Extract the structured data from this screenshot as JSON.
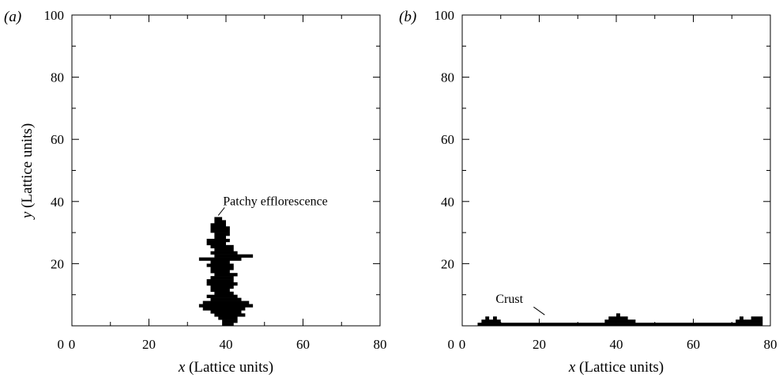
{
  "chart_data": [
    {
      "type": "scatter",
      "panel": "(a)",
      "xlabel_var": "x",
      "xlabel_rest": " (Lattice units)",
      "ylabel_var": "y",
      "ylabel_rest": " (Lattice units)",
      "xlim": [
        0,
        80
      ],
      "ylim": [
        0,
        100
      ],
      "xticks": [
        0,
        20,
        40,
        60,
        80
      ],
      "yticks": [
        20,
        40,
        60,
        80,
        100
      ],
      "grid": false,
      "annotation": {
        "text": "Patchy efflorescence",
        "x": 38,
        "y": 35
      },
      "deposit_rows": [
        {
          "y": 35,
          "x0": 37,
          "x1": 39
        },
        {
          "y": 34,
          "x0": 37,
          "x1": 40
        },
        {
          "y": 33,
          "x0": 36,
          "x1": 40
        },
        {
          "y": 32,
          "x0": 36,
          "x1": 41
        },
        {
          "y": 31,
          "x0": 36,
          "x1": 41
        },
        {
          "y": 30,
          "x0": 37,
          "x1": 41
        },
        {
          "y": 29,
          "x0": 37,
          "x1": 40
        },
        {
          "y": 28,
          "x0": 35,
          "x1": 41
        },
        {
          "y": 27,
          "x0": 35,
          "x1": 40
        },
        {
          "y": 26,
          "x0": 36,
          "x1": 42
        },
        {
          "y": 25,
          "x0": 37,
          "x1": 42
        },
        {
          "y": 24,
          "x0": 36,
          "x1": 43
        },
        {
          "y": 23,
          "x0": 37,
          "x1": 47
        },
        {
          "y": 22,
          "x0": 33,
          "x1": 44
        },
        {
          "y": 21,
          "x0": 36,
          "x1": 41
        },
        {
          "y": 20,
          "x0": 35,
          "x1": 42
        },
        {
          "y": 19,
          "x0": 36,
          "x1": 42
        },
        {
          "y": 18,
          "x0": 36,
          "x1": 41
        },
        {
          "y": 17,
          "x0": 37,
          "x1": 43
        },
        {
          "y": 16,
          "x0": 36,
          "x1": 42
        },
        {
          "y": 15,
          "x0": 35,
          "x1": 42
        },
        {
          "y": 14,
          "x0": 35,
          "x1": 43
        },
        {
          "y": 13,
          "x0": 36,
          "x1": 42
        },
        {
          "y": 12,
          "x0": 36,
          "x1": 41
        },
        {
          "y": 11,
          "x0": 37,
          "x1": 42
        },
        {
          "y": 10,
          "x0": 35,
          "x1": 43
        },
        {
          "y": 9,
          "x0": 36,
          "x1": 44
        },
        {
          "y": 8,
          "x0": 34,
          "x1": 46
        },
        {
          "y": 7,
          "x0": 33,
          "x1": 47
        },
        {
          "y": 6,
          "x0": 34,
          "x1": 45
        },
        {
          "y": 5,
          "x0": 36,
          "x1": 44
        },
        {
          "y": 4,
          "x0": 37,
          "x1": 45
        },
        {
          "y": 3,
          "x0": 38,
          "x1": 43
        },
        {
          "y": 2,
          "x0": 39,
          "x1": 43
        },
        {
          "y": 1,
          "x0": 39,
          "x1": 42
        }
      ]
    },
    {
      "type": "scatter",
      "panel": "(b)",
      "xlabel_var": "x",
      "xlabel_rest": " (Lattice units)",
      "ylabel_var": "",
      "ylabel_rest": "",
      "xlim": [
        0,
        80
      ],
      "ylim": [
        0,
        100
      ],
      "xticks": [
        0,
        20,
        40,
        60,
        80
      ],
      "yticks": [
        20,
        40,
        60,
        80,
        100
      ],
      "grid": false,
      "annotation": {
        "text": "Crust",
        "x": 21,
        "y": 3
      },
      "deposit_rows": [
        {
          "y": 4,
          "x0": 40,
          "x1": 41
        },
        {
          "y": 3,
          "x0": 6,
          "x1": 7
        },
        {
          "y": 3,
          "x0": 8,
          "x1": 9
        },
        {
          "y": 3,
          "x0": 38,
          "x1": 43
        },
        {
          "y": 3,
          "x0": 72,
          "x1": 73
        },
        {
          "y": 3,
          "x0": 75,
          "x1": 78
        },
        {
          "y": 2,
          "x0": 5,
          "x1": 10
        },
        {
          "y": 2,
          "x0": 37,
          "x1": 45
        },
        {
          "y": 2,
          "x0": 71,
          "x1": 78
        },
        {
          "y": 1,
          "x0": 4,
          "x1": 78
        }
      ]
    }
  ]
}
